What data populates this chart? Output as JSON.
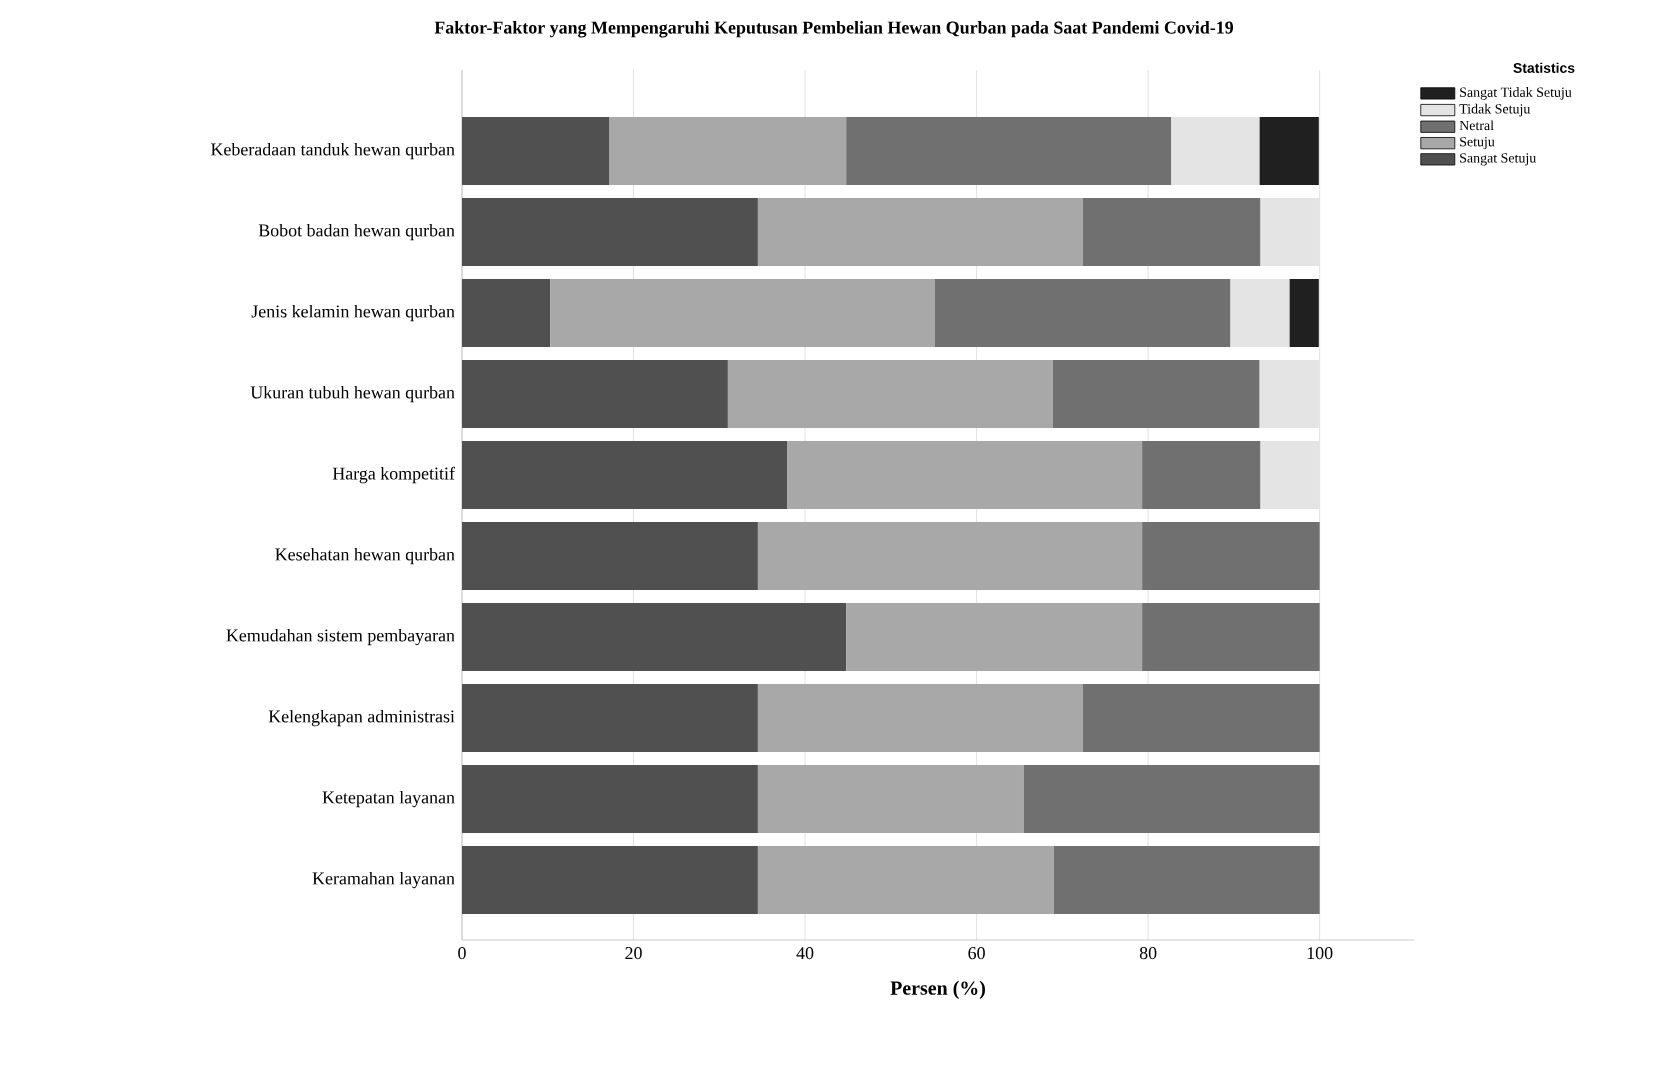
{
  "chart_data": {
    "type": "bar",
    "orientation": "horizontal",
    "stacked": true,
    "title": "Faktor-Faktor yang Mempengaruhi Keputusan Pembelian Hewan Qurban pada Saat Pandemi Covid-19",
    "xlabel": "Persen (%)",
    "legend_title": "Statistics",
    "legend": "top right",
    "grid": "x",
    "categories": [
      "Keberadaan tanduk hewan qurban",
      "Bobot badan hewan qurban",
      "Jenis kelamin hewan qurban",
      "Ukuran tubuh hewan qurban",
      "Harga kompetitif",
      "Kesehatan hewan qurban",
      "Kemudahan sistem pembayaran",
      "Kelengkapan administrasi",
      "Ketepatan layanan",
      "Keramahan layanan"
    ],
    "series": [
      {
        "name": "Sangat Setuju",
        "color": "#505050",
        "values": [
          17.2,
          34.5,
          10.3,
          31.0,
          37.9,
          34.5,
          44.8,
          34.5,
          34.5,
          34.5
        ]
      },
      {
        "name": "Setuju",
        "color": "#a8a8a8",
        "values": [
          27.6,
          37.9,
          44.8,
          37.9,
          41.4,
          44.8,
          34.5,
          37.9,
          31.0,
          34.5
        ]
      },
      {
        "name": "Netral",
        "color": "#707070",
        "values": [
          37.9,
          20.7,
          34.5,
          24.1,
          13.8,
          20.7,
          20.7,
          27.6,
          34.5,
          31.0
        ]
      },
      {
        "name": "Tidak Setuju",
        "color": "#e4e4e4",
        "values": [
          10.3,
          6.9,
          6.9,
          6.9,
          6.9,
          null,
          null,
          null,
          null,
          null
        ]
      },
      {
        "name": "Sangat Tidak Setuju",
        "color": "#202020",
        "values": [
          6.9,
          null,
          3.4,
          null,
          null,
          null,
          null,
          null,
          null,
          null
        ]
      }
    ],
    "xlim": [
      0,
      111
    ],
    "xticks": [
      0,
      20,
      40,
      60,
      80,
      100
    ]
  }
}
